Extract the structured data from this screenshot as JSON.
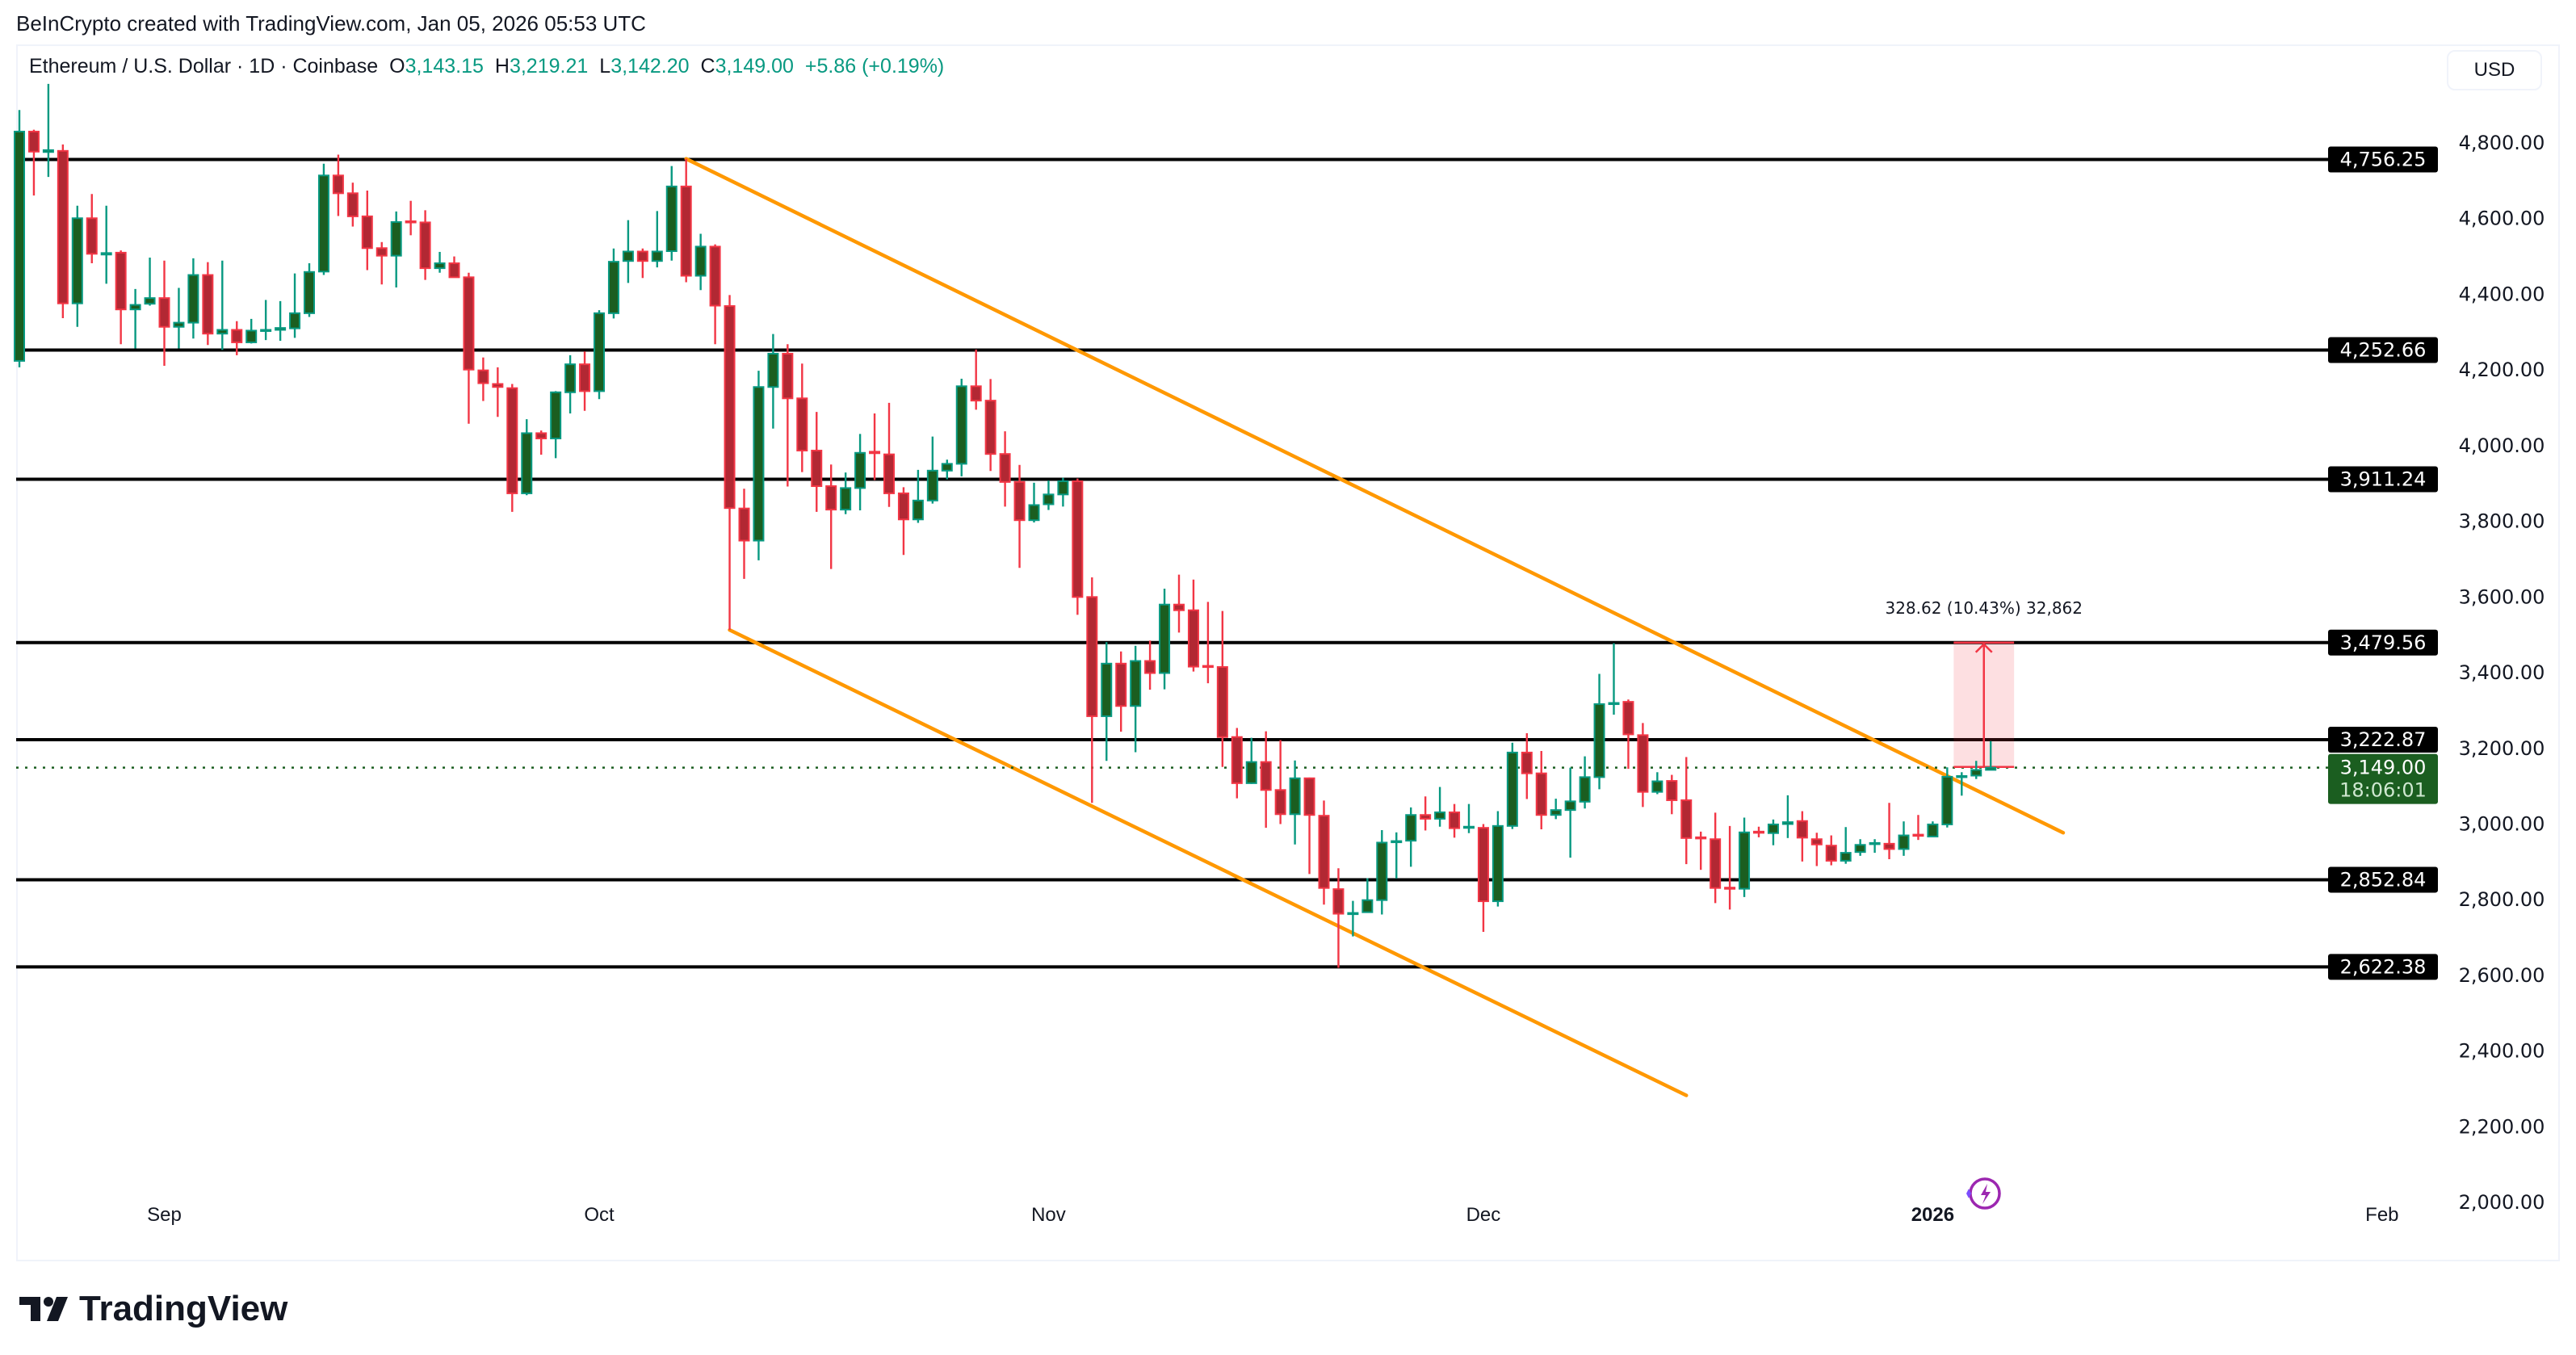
{
  "credit": "BeInCrypto created with TradingView.com, Jan 05, 2026 05:53 UTC",
  "legend": {
    "symbol": "Ethereum / U.S. Dollar · 1D · Coinbase",
    "o_label": "O",
    "o_value": "3,143.15",
    "h_label": "H",
    "h_value": "3,219.21",
    "l_label": "L",
    "l_value": "3,142.20",
    "c_label": "C",
    "c_value": "3,149.00",
    "change": "+5.86 (+0.19%)"
  },
  "currency_button": "USD",
  "logo": "TradingView",
  "colors": {
    "up": "#089981",
    "up_fill": "#1b5e20",
    "down": "#f23645",
    "down_fill": "#b22833",
    "trendline": "#ff9800",
    "level": "#000000",
    "price_tag": "#1b5e20"
  },
  "chart_data": {
    "type": "candlestick",
    "title": "Ethereum / U.S. Dollar · 1D · Coinbase",
    "ylim": [
      1950,
      4900
    ],
    "xlim": [
      "2025-08-21",
      "2026-02-15"
    ],
    "y_ticks": [
      "4,800.00",
      "4,600.00",
      "4,400.00",
      "4,200.00",
      "4,000.00",
      "3,800.00",
      "3,600.00",
      "3,400.00",
      "3,200.00",
      "3,000.00",
      "2,800.00",
      "2,600.00",
      "2,400.00",
      "2,200.00",
      "2,000.00"
    ],
    "y_tick_values": [
      4800,
      4600,
      4400,
      4200,
      4000,
      3800,
      3600,
      3400,
      3200,
      3000,
      2800,
      2600,
      2400,
      2200,
      2000
    ],
    "x_ticks": [
      {
        "label": "Sep",
        "date": "2025-09-01",
        "bold": false
      },
      {
        "label": "Oct",
        "date": "2025-10-01",
        "bold": false
      },
      {
        "label": "Nov",
        "date": "2025-11-01",
        "bold": false
      },
      {
        "label": "Dec",
        "date": "2025-12-01",
        "bold": false
      },
      {
        "label": "2026",
        "date": "2026-01-01",
        "bold": true
      },
      {
        "label": "Feb",
        "date": "2026-02-01",
        "bold": false
      }
    ],
    "fields": [
      "date",
      "open",
      "high",
      "low",
      "close"
    ],
    "candles": [
      [
        "2025-08-22",
        4224,
        4887,
        4207,
        4830
      ],
      [
        "2025-08-23",
        4830,
        4835,
        4661,
        4777
      ],
      [
        "2025-08-24",
        4776,
        4956,
        4710,
        4781
      ],
      [
        "2025-08-25",
        4779,
        4796,
        4337,
        4376
      ],
      [
        "2025-08-26",
        4376,
        4634,
        4314,
        4601
      ],
      [
        "2025-08-27",
        4601,
        4665,
        4482,
        4507
      ],
      [
        "2025-08-28",
        4505,
        4634,
        4428,
        4509
      ],
      [
        "2025-08-29",
        4510,
        4516,
        4268,
        4360
      ],
      [
        "2025-08-30",
        4360,
        4414,
        4257,
        4372
      ],
      [
        "2025-08-31",
        4375,
        4497,
        4370,
        4390
      ],
      [
        "2025-09-01",
        4390,
        4489,
        4211,
        4314
      ],
      [
        "2025-09-02",
        4314,
        4417,
        4257,
        4325
      ],
      [
        "2025-09-03",
        4325,
        4495,
        4283,
        4451
      ],
      [
        "2025-09-04",
        4451,
        4485,
        4266,
        4296
      ],
      [
        "2025-09-05",
        4296,
        4489,
        4253,
        4306
      ],
      [
        "2025-09-06",
        4306,
        4329,
        4239,
        4273
      ],
      [
        "2025-09-07",
        4273,
        4335,
        4270,
        4304
      ],
      [
        "2025-09-08",
        4303,
        4385,
        4279,
        4306
      ],
      [
        "2025-09-09",
        4306,
        4382,
        4277,
        4311
      ],
      [
        "2025-09-10",
        4310,
        4455,
        4285,
        4350
      ],
      [
        "2025-09-11",
        4350,
        4482,
        4340,
        4459
      ],
      [
        "2025-09-12",
        4460,
        4745,
        4451,
        4714
      ],
      [
        "2025-09-13",
        4714,
        4769,
        4607,
        4667
      ],
      [
        "2025-09-14",
        4667,
        4695,
        4579,
        4606
      ],
      [
        "2025-09-15",
        4606,
        4674,
        4464,
        4522
      ],
      [
        "2025-09-16",
        4522,
        4538,
        4426,
        4502
      ],
      [
        "2025-09-17",
        4502,
        4619,
        4418,
        4591
      ],
      [
        "2025-09-18",
        4593,
        4647,
        4556,
        4590
      ],
      [
        "2025-09-19",
        4590,
        4622,
        4438,
        4469
      ],
      [
        "2025-09-20",
        4469,
        4512,
        4457,
        4482
      ],
      [
        "2025-09-21",
        4482,
        4500,
        4445,
        4445
      ],
      [
        "2025-09-22",
        4445,
        4457,
        4058,
        4201
      ],
      [
        "2025-09-23",
        4199,
        4233,
        4118,
        4165
      ],
      [
        "2025-09-24",
        4163,
        4207,
        4076,
        4155
      ],
      [
        "2025-09-25",
        4152,
        4163,
        3825,
        3874
      ],
      [
        "2025-09-26",
        3874,
        4070,
        3869,
        4033
      ],
      [
        "2025-09-27",
        4033,
        4040,
        3976,
        4019
      ],
      [
        "2025-09-28",
        4019,
        4144,
        3967,
        4141
      ],
      [
        "2025-09-29",
        4141,
        4239,
        4085,
        4215
      ],
      [
        "2025-09-30",
        4215,
        4249,
        4092,
        4144
      ],
      [
        "2025-10-01",
        4144,
        4358,
        4123,
        4350
      ],
      [
        "2025-10-02",
        4350,
        4521,
        4336,
        4486
      ],
      [
        "2025-10-03",
        4488,
        4596,
        4430,
        4513
      ],
      [
        "2025-10-04",
        4513,
        4521,
        4443,
        4488
      ],
      [
        "2025-10-05",
        4488,
        4620,
        4471,
        4513
      ],
      [
        "2025-10-06",
        4514,
        4739,
        4489,
        4685
      ],
      [
        "2025-10-07",
        4685,
        4758,
        4432,
        4449
      ],
      [
        "2025-10-08",
        4449,
        4560,
        4411,
        4526
      ],
      [
        "2025-10-09",
        4526,
        4532,
        4268,
        4370
      ],
      [
        "2025-10-10",
        4369,
        4398,
        3513,
        3835
      ],
      [
        "2025-10-11",
        3834,
        3886,
        3648,
        3749
      ],
      [
        "2025-10-12",
        3749,
        4198,
        3697,
        4155
      ],
      [
        "2025-10-13",
        4155,
        4295,
        4045,
        4243
      ],
      [
        "2025-10-14",
        4243,
        4268,
        3892,
        4125
      ],
      [
        "2025-10-15",
        4125,
        4217,
        3930,
        3987
      ],
      [
        "2025-10-16",
        3987,
        4089,
        3825,
        3893
      ],
      [
        "2025-10-17",
        3893,
        3950,
        3674,
        3831
      ],
      [
        "2025-10-18",
        3831,
        3929,
        3819,
        3888
      ],
      [
        "2025-10-19",
        3888,
        4031,
        3829,
        3981
      ],
      [
        "2025-10-20",
        3984,
        4085,
        3909,
        3980
      ],
      [
        "2025-10-21",
        3977,
        4113,
        3838,
        3874
      ],
      [
        "2025-10-22",
        3874,
        3890,
        3711,
        3805
      ],
      [
        "2025-10-23",
        3805,
        3936,
        3796,
        3855
      ],
      [
        "2025-10-24",
        3855,
        4024,
        3847,
        3934
      ],
      [
        "2025-10-25",
        3934,
        3963,
        3911,
        3952
      ],
      [
        "2025-10-26",
        3952,
        4177,
        3919,
        4157
      ],
      [
        "2025-10-27",
        4157,
        4254,
        4095,
        4119
      ],
      [
        "2025-10-28",
        4119,
        4176,
        3933,
        3978
      ],
      [
        "2025-10-29",
        3978,
        4038,
        3839,
        3904
      ],
      [
        "2025-10-30",
        3904,
        3949,
        3677,
        3803
      ],
      [
        "2025-10-31",
        3803,
        3902,
        3797,
        3843
      ],
      [
        "2025-11-01",
        3845,
        3908,
        3830,
        3871
      ],
      [
        "2025-11-02",
        3871,
        3915,
        3839,
        3906
      ],
      [
        "2025-11-03",
        3906,
        3913,
        3553,
        3600
      ],
      [
        "2025-11-04",
        3600,
        3652,
        3056,
        3285
      ],
      [
        "2025-11-05",
        3285,
        3481,
        3167,
        3424
      ],
      [
        "2025-11-06",
        3424,
        3456,
        3244,
        3312
      ],
      [
        "2025-11-07",
        3312,
        3471,
        3190,
        3431
      ],
      [
        "2025-11-08",
        3431,
        3485,
        3355,
        3399
      ],
      [
        "2025-11-09",
        3399,
        3622,
        3356,
        3580
      ],
      [
        "2025-11-10",
        3580,
        3659,
        3506,
        3565
      ],
      [
        "2025-11-11",
        3565,
        3646,
        3403,
        3416
      ],
      [
        "2025-11-12",
        3418,
        3587,
        3372,
        3415
      ],
      [
        "2025-11-13",
        3415,
        3563,
        3151,
        3230
      ],
      [
        "2025-11-14",
        3230,
        3254,
        3068,
        3108
      ],
      [
        "2025-11-15",
        3108,
        3228,
        3106,
        3164
      ],
      [
        "2025-11-16",
        3164,
        3245,
        2990,
        3090
      ],
      [
        "2025-11-17",
        3090,
        3222,
        3000,
        3026
      ],
      [
        "2025-11-18",
        3026,
        3168,
        2946,
        3121
      ],
      [
        "2025-11-19",
        3121,
        3123,
        2868,
        3024
      ],
      [
        "2025-11-20",
        3022,
        3062,
        2787,
        2831
      ],
      [
        "2025-11-21",
        2828,
        2883,
        2620,
        2763
      ],
      [
        "2025-11-22",
        2762,
        2797,
        2703,
        2765
      ],
      [
        "2025-11-23",
        2767,
        2857,
        2767,
        2799
      ],
      [
        "2025-11-24",
        2799,
        2984,
        2761,
        2951
      ],
      [
        "2025-11-25",
        2953,
        2978,
        2856,
        2955
      ],
      [
        "2025-11-26",
        2956,
        3044,
        2887,
        3024
      ],
      [
        "2025-11-27",
        3024,
        3073,
        2983,
        3014
      ],
      [
        "2025-11-28",
        3014,
        3098,
        2993,
        3031
      ],
      [
        "2025-11-29",
        3031,
        3053,
        2964,
        2989
      ],
      [
        "2025-11-30",
        2990,
        3053,
        2976,
        2993
      ],
      [
        "2025-12-01",
        2990,
        3000,
        2715,
        2796
      ],
      [
        "2025-12-02",
        2796,
        3034,
        2782,
        2995
      ],
      [
        "2025-12-03",
        2995,
        3215,
        2987,
        3189
      ],
      [
        "2025-12-04",
        3189,
        3240,
        3066,
        3134
      ],
      [
        "2025-12-05",
        3134,
        3193,
        2986,
        3024
      ],
      [
        "2025-12-06",
        3024,
        3067,
        3013,
        3037
      ],
      [
        "2025-12-07",
        3037,
        3149,
        2911,
        3060
      ],
      [
        "2025-12-08",
        3059,
        3179,
        3041,
        3124
      ],
      [
        "2025-12-09",
        3124,
        3397,
        3092,
        3317
      ],
      [
        "2025-12-10",
        3317,
        3478,
        3289,
        3320
      ],
      [
        "2025-12-11",
        3323,
        3329,
        3146,
        3237
      ],
      [
        "2025-12-12",
        3235,
        3267,
        3045,
        3085
      ],
      [
        "2025-12-13",
        3085,
        3137,
        3079,
        3113
      ],
      [
        "2025-12-14",
        3114,
        3130,
        3026,
        3063
      ],
      [
        "2025-12-15",
        3063,
        3177,
        2894,
        2963
      ],
      [
        "2025-12-16",
        2965,
        2980,
        2879,
        2962
      ],
      [
        "2025-12-17",
        2960,
        3030,
        2791,
        2831
      ],
      [
        "2025-12-18",
        2832,
        2995,
        2774,
        2829
      ],
      [
        "2025-12-19",
        2829,
        3017,
        2807,
        2978
      ],
      [
        "2025-12-20",
        2980,
        2993,
        2965,
        2978
      ],
      [
        "2025-12-21",
        2976,
        3012,
        2944,
        2999
      ],
      [
        "2025-12-22",
        3000,
        3076,
        2963,
        3005
      ],
      [
        "2025-12-23",
        3008,
        3034,
        2901,
        2964
      ],
      [
        "2025-12-24",
        2960,
        2977,
        2889,
        2946
      ],
      [
        "2025-12-25",
        2943,
        2970,
        2891,
        2903
      ],
      [
        "2025-12-26",
        2903,
        2992,
        2895,
        2924
      ],
      [
        "2025-12-27",
        2926,
        2960,
        2916,
        2945
      ],
      [
        "2025-12-28",
        2947,
        2960,
        2924,
        2950
      ],
      [
        "2025-12-29",
        2948,
        3056,
        2907,
        2934
      ],
      [
        "2025-12-30",
        2934,
        3007,
        2916,
        2970
      ],
      [
        "2025-12-31",
        2972,
        3024,
        2958,
        2969
      ],
      [
        "2026-01-01",
        2967,
        3007,
        2967,
        2999
      ],
      [
        "2026-01-02",
        2999,
        3150,
        2991,
        3125
      ],
      [
        "2026-01-03",
        3124,
        3137,
        3075,
        3127
      ],
      [
        "2026-01-04",
        3128,
        3167,
        3119,
        3143
      ],
      [
        "2026-01-05",
        3143.15,
        3219.21,
        3142.2,
        3149.0
      ]
    ],
    "levels": [
      {
        "value": 4756.25,
        "label": "4,756.25"
      },
      {
        "value": 4252.66,
        "label": "4,252.66"
      },
      {
        "value": 3911.24,
        "label": "3,911.24"
      },
      {
        "value": 3479.56,
        "label": "3,479.56"
      },
      {
        "value": 3222.87,
        "label": "3,222.87"
      },
      {
        "value": 2852.84,
        "label": "2,852.84"
      },
      {
        "value": 2622.38,
        "label": "2,622.38"
      }
    ],
    "trendlines": [
      {
        "from": [
          "2025-10-07",
          4758
        ],
        "to": [
          "2026-01-10",
          2977
        ]
      },
      {
        "from": [
          "2025-10-10",
          3513
        ],
        "to": [
          "2025-12-15",
          2283
        ]
      }
    ],
    "last_price": {
      "value": 3149.0,
      "label": "3,149.00",
      "countdown": "18:06:01"
    },
    "measure": {
      "from_date": "2026-01-02",
      "to_date": "2026-01-06",
      "from_price": 3150.94,
      "to_price": 3479.56,
      "label": "328.62 (10.43%) 32,862"
    }
  }
}
